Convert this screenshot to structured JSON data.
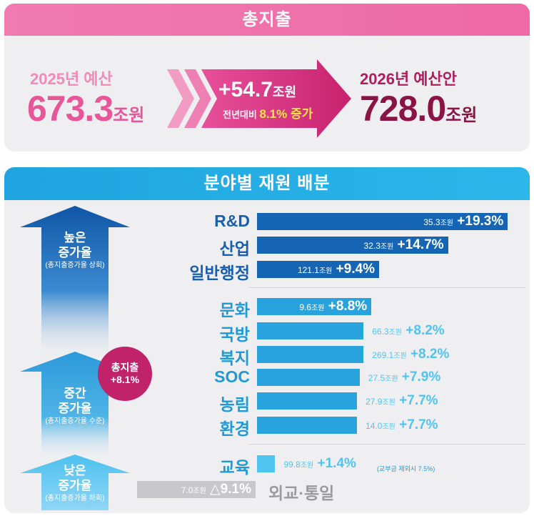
{
  "total": {
    "header": "총지출",
    "prev_label": "2025년 예산",
    "prev_value": "673.3",
    "prev_unit": "조원",
    "increase_value": "+54.7",
    "increase_unit": "조원",
    "increase_caption": "전년대비",
    "increase_pct": "8.1% 증가",
    "next_label": "2026년 예산안",
    "next_value": "728.0",
    "next_unit": "조원"
  },
  "sector": {
    "header": "분야별 재원 배분",
    "tiers": [
      {
        "label": "높은\n증가율",
        "sub": "(총지출증가율 상회)"
      },
      {
        "label": "중간\n증가율",
        "sub": "(총지출증가율 수준)"
      },
      {
        "label": "낮은\n증가율",
        "sub": "(총지출증가율 하회)"
      }
    ],
    "total_badge": "총지출\n+8.1%",
    "note_education": "(교부금 제외시 7.5%)"
  },
  "chart_data": {
    "type": "bar",
    "orientation": "horizontal",
    "unit": "조원",
    "categories": [
      "R&D",
      "산업",
      "일반행정",
      "문화",
      "국방",
      "복지",
      "SOC",
      "농림",
      "환경",
      "교육",
      "외교·통일"
    ],
    "amounts": [
      35.3,
      32.3,
      121.1,
      9.6,
      66.3,
      269.1,
      27.5,
      27.9,
      14.0,
      99.8,
      7.0
    ],
    "growth_pct": [
      19.3,
      14.7,
      9.4,
      8.8,
      8.2,
      8.2,
      7.9,
      7.7,
      7.7,
      1.4,
      -9.1
    ],
    "growth_labels": [
      "+19.3%",
      "+14.7%",
      "+9.4%",
      "+8.8%",
      "+8.2%",
      "+8.2%",
      "+7.9%",
      "+7.7%",
      "+7.7%",
      "+1.4%",
      "△9.1%"
    ],
    "reference_line_pct": 8.1,
    "colors": {
      "high": "#1565b4",
      "mid": "#29a3dd",
      "low": "#4fc4f0",
      "negative": "#c8c8cc",
      "label_high": "#1a5fae",
      "label_mid": "#1f9ad6",
      "label_neg": "#9a9aa0",
      "pink": "#e8569a",
      "magenta": "#b5205f"
    }
  }
}
